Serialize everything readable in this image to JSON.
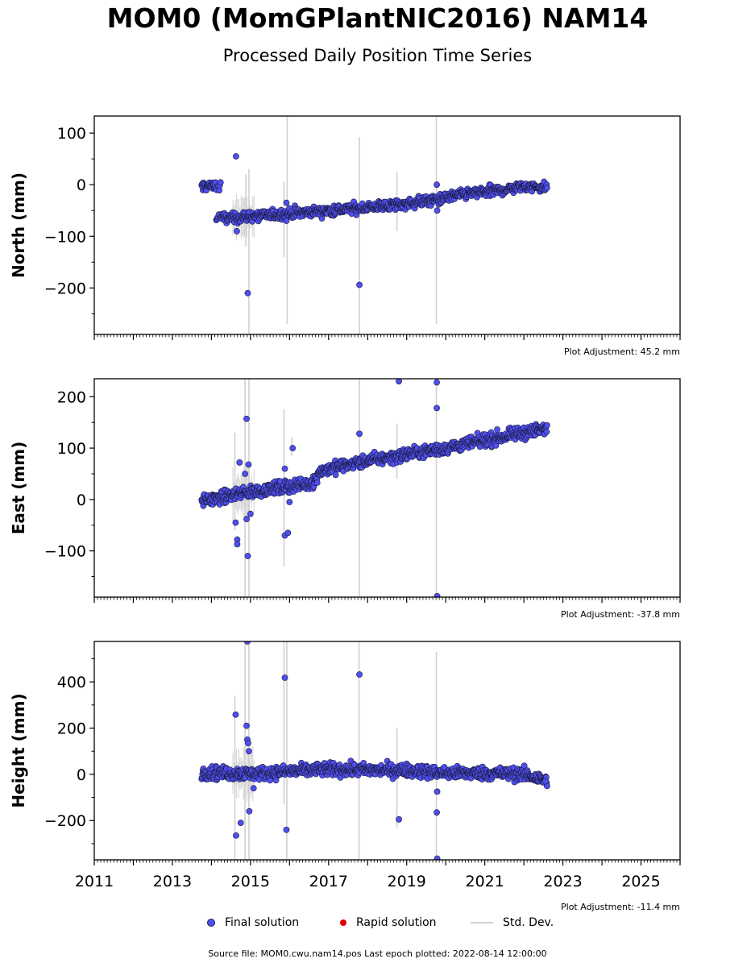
{
  "title": "MOM0 (MomGPlantNIC2016) NAM14",
  "subtitle": "Processed Daily Position Time Series",
  "legend": {
    "final_label": "Final solution",
    "rapid_label": "Rapid solution",
    "std_label": "Std. Dev.",
    "final_color": "#4f4ff0",
    "rapid_color": "#e00000",
    "std_color": "#d0d0d0"
  },
  "footer": "Source file: MOM0.cwu.nam14.pos  Last epoch plotted: 2022-08-14 12:00:00",
  "chart_data": [
    {
      "type": "scatter",
      "ylabel": "North (mm)",
      "adjustment": "Plot Adjustment: 45.2 mm",
      "xlim": [
        2011,
        2026
      ],
      "ylim": [
        -290,
        133
      ],
      "y_ticks": [
        100,
        0,
        -100,
        -200
      ],
      "y_tick_labels": [
        "100",
        "0",
        "−100",
        "−200"
      ],
      "show_x_tick_labels": false,
      "trend": [
        [
          2013.75,
          -2
        ],
        [
          2014.2,
          -3
        ],
        [
          2014.25,
          -65
        ],
        [
          2015.0,
          -62
        ],
        [
          2016.0,
          -56
        ],
        [
          2017.0,
          -50
        ],
        [
          2018.0,
          -44
        ],
        [
          2019.0,
          -37
        ],
        [
          2019.75,
          -29
        ],
        [
          2020.5,
          -18
        ],
        [
          2021.5,
          -10
        ],
        [
          2022.0,
          -3
        ],
        [
          2022.6,
          -5
        ]
      ],
      "noise_sd": 5,
      "outliers": [
        [
          2014.63,
          55
        ],
        [
          2014.93,
          -210
        ],
        [
          2014.65,
          -90
        ],
        [
          2017.79,
          -194
        ],
        [
          2019.77,
          0
        ],
        [
          2019.78,
          -50
        ],
        [
          2015.92,
          -35
        ],
        [
          2015.92,
          -70
        ]
      ],
      "error_bars": [
        [
          2014.88,
          20,
          -120
        ],
        [
          2014.96,
          30,
          -290
        ],
        [
          2015.86,
          5,
          -140
        ],
        [
          2015.94,
          135,
          -270
        ],
        [
          2017.79,
          92,
          -290
        ],
        [
          2018.75,
          25,
          -90
        ],
        [
          2019.76,
          133,
          -270
        ]
      ]
    },
    {
      "type": "scatter",
      "ylabel": "East (mm)",
      "adjustment": "Plot Adjustment: -37.8 mm",
      "xlim": [
        2011,
        2026
      ],
      "ylim": [
        -190,
        235
      ],
      "y_ticks": [
        200,
        100,
        0,
        -100
      ],
      "y_tick_labels": [
        "200",
        "100",
        "0",
        "−100"
      ],
      "show_x_tick_labels": false,
      "trend": [
        [
          2013.75,
          -2
        ],
        [
          2014.2,
          2
        ],
        [
          2014.6,
          10
        ],
        [
          2015.0,
          15
        ],
        [
          2015.95,
          25
        ],
        [
          2016.5,
          30
        ],
        [
          2016.7,
          40
        ],
        [
          2016.75,
          55
        ],
        [
          2017.5,
          68
        ],
        [
          2018.0,
          75
        ],
        [
          2019.0,
          88
        ],
        [
          2020.0,
          100
        ],
        [
          2021.0,
          115
        ],
        [
          2022.0,
          130
        ],
        [
          2022.6,
          138
        ]
      ],
      "noise_sd": 6,
      "outliers": [
        [
          2014.9,
          157
        ],
        [
          2014.95,
          68
        ],
        [
          2014.72,
          72
        ],
        [
          2014.86,
          50
        ],
        [
          2014.62,
          -45
        ],
        [
          2014.66,
          -78
        ],
        [
          2014.66,
          -87
        ],
        [
          2014.93,
          -110
        ],
        [
          2014.9,
          -38
        ],
        [
          2015.0,
          -28
        ],
        [
          2015.88,
          60
        ],
        [
          2015.88,
          -70
        ],
        [
          2015.96,
          -65
        ],
        [
          2016.08,
          100
        ],
        [
          2017.79,
          128
        ],
        [
          2018.8,
          230
        ],
        [
          2019.77,
          228
        ],
        [
          2019.77,
          178
        ],
        [
          2019.78,
          -188
        ],
        [
          2016.0,
          -5
        ]
      ],
      "error_bars": [
        [
          2014.6,
          130,
          -60
        ],
        [
          2014.86,
          235,
          -190
        ],
        [
          2014.96,
          235,
          -190
        ],
        [
          2015.86,
          175,
          -130
        ],
        [
          2016.06,
          122,
          85
        ],
        [
          2017.79,
          235,
          -190
        ],
        [
          2018.75,
          148,
          40
        ],
        [
          2019.76,
          235,
          -190
        ]
      ]
    },
    {
      "type": "scatter",
      "ylabel": "Height (mm)",
      "adjustment": "Plot Adjustment: -11.4 mm",
      "xlabel": "",
      "xlim": [
        2011,
        2026
      ],
      "ylim": [
        -370,
        575
      ],
      "y_ticks": [
        400,
        200,
        0,
        -200
      ],
      "y_tick_labels": [
        "400",
        "200",
        "0",
        "−200"
      ],
      "x_ticks": [
        2011,
        2013,
        2015,
        2017,
        2019,
        2021,
        2023,
        2025
      ],
      "x_tick_labels": [
        "2011",
        "2013",
        "2015",
        "2017",
        "2019",
        "2021",
        "2023",
        "2025"
      ],
      "show_x_tick_labels": true,
      "trend": [
        [
          2013.75,
          8
        ],
        [
          2015.0,
          2
        ],
        [
          2016.0,
          12
        ],
        [
          2017.0,
          22
        ],
        [
          2018.0,
          18
        ],
        [
          2019.0,
          18
        ],
        [
          2020.0,
          5
        ],
        [
          2021.0,
          5
        ],
        [
          2022.0,
          0
        ],
        [
          2022.6,
          -30
        ]
      ],
      "noise_sd": 14,
      "outliers": [
        [
          2014.62,
          258
        ],
        [
          2014.9,
          210
        ],
        [
          2014.92,
          150
        ],
        [
          2014.94,
          135
        ],
        [
          2014.96,
          100
        ],
        [
          2014.92,
          575
        ],
        [
          2014.63,
          -265
        ],
        [
          2014.75,
          -210
        ],
        [
          2014.97,
          -160
        ],
        [
          2015.08,
          -60
        ],
        [
          2015.88,
          418
        ],
        [
          2015.92,
          -240
        ],
        [
          2017.79,
          432
        ],
        [
          2018.8,
          -195
        ],
        [
          2019.77,
          -165
        ],
        [
          2019.78,
          -75
        ],
        [
          2019.78,
          -365
        ],
        [
          2022.55,
          -30
        ]
      ],
      "error_bars": [
        [
          2014.6,
          340,
          -380
        ],
        [
          2014.86,
          575,
          -380
        ],
        [
          2014.96,
          575,
          -380
        ],
        [
          2015.86,
          575,
          -130
        ],
        [
          2015.93,
          575,
          -370
        ],
        [
          2017.78,
          575,
          -370
        ],
        [
          2018.75,
          200,
          -230
        ],
        [
          2019.76,
          530,
          -370
        ]
      ]
    }
  ]
}
